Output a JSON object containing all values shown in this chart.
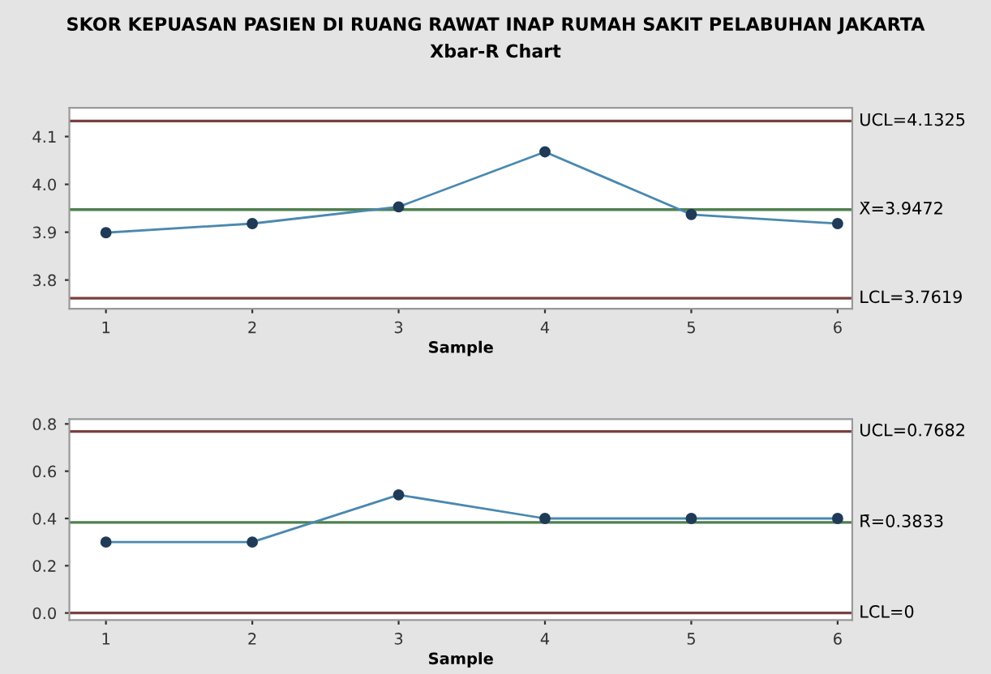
{
  "chart_data": [
    {
      "type": "line",
      "title": "SKOR KEPUASAN PASIEN DI RUANG RAWAT INAP RUMAH SAKIT PELABUHAN JAKARTA",
      "subtitle": "Xbar-R Chart",
      "xlabel": "Sample",
      "x": [
        1,
        2,
        3,
        4,
        5,
        6
      ],
      "series": [
        {
          "color": "#4a88b0",
          "values": [
            3.899,
            3.918,
            3.953,
            4.068,
            3.937,
            3.918
          ]
        }
      ],
      "marker": "circle",
      "line_style": "solid",
      "grid": false,
      "xlim": [
        0.75,
        6.1
      ],
      "xticks": [
        1,
        2,
        3,
        4,
        5,
        6
      ],
      "ylim": [
        3.74,
        4.16
      ],
      "yticks": [
        3.8,
        3.9,
        {
          "value": 4.0,
          "label": "4.0"
        },
        4.1
      ],
      "ref_lines": [
        {
          "axis": "y",
          "value": 4.1325,
          "label": "UCL=4.1325",
          "color": "#7a3f3f"
        },
        {
          "axis": "y",
          "value": 3.9472,
          "label": "X̄=3.9472",
          "color": "#4f7f4f"
        },
        {
          "axis": "y",
          "value": 3.7619,
          "label": "LCL=3.7619",
          "color": "#7a3f3f"
        }
      ]
    },
    {
      "type": "line",
      "xlabel": "Sample",
      "x": [
        1,
        2,
        3,
        4,
        5,
        6
      ],
      "series": [
        {
          "color": "#4a88b0",
          "values": [
            0.3,
            0.3,
            0.5,
            0.4,
            0.4,
            0.4
          ]
        }
      ],
      "marker": "circle",
      "line_style": "solid",
      "grid": false,
      "xlim": [
        0.75,
        6.1
      ],
      "xticks": [
        1,
        2,
        3,
        4,
        5,
        6
      ],
      "ylim": [
        -0.03,
        0.82
      ],
      "yticks": [
        {
          "value": 0,
          "label": "0.0"
        },
        0.2,
        0.4,
        0.6,
        0.8
      ],
      "ref_lines": [
        {
          "axis": "y",
          "value": 0.7682,
          "label": "UCL=0.7682",
          "color": "#7a3f3f"
        },
        {
          "axis": "y",
          "value": 0.3833,
          "label": "R̄=0.3833",
          "color": "#4f7f4f"
        },
        {
          "axis": "y",
          "value": 0,
          "label": "LCL=0",
          "color": "#7a3f3f"
        }
      ]
    }
  ]
}
